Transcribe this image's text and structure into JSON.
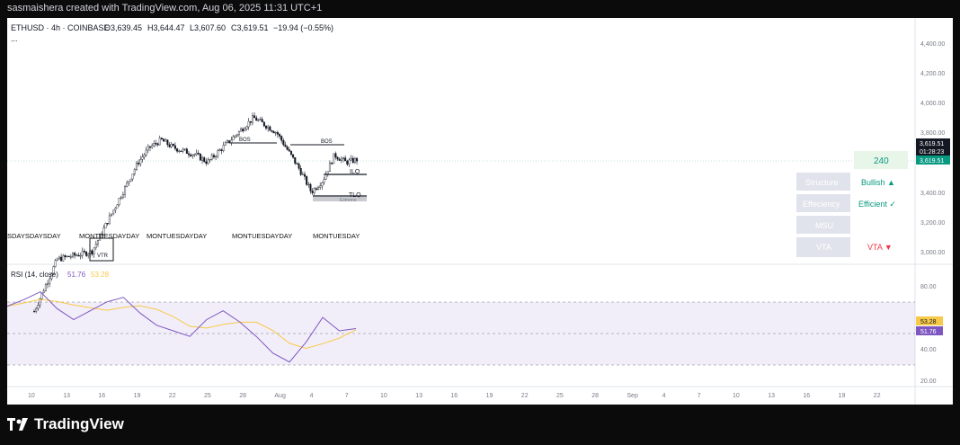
{
  "header": {
    "credit": "sasmaishera created with TradingView.com, Aug 06, 2025 11:31 UTC+1"
  },
  "footer": {
    "brand": "TradingView"
  },
  "symbol": {
    "name": "ETHUSD · 4h · COINBASE",
    "open": "O3,639.45",
    "high": "H3,644.47",
    "low": "L3,607.60",
    "close": "C3,619.51",
    "change": "−19.94 (−0.55%)",
    "more": "..."
  },
  "price_axis": {
    "ticks": [
      "4,400.00",
      "4,200.00",
      "4,000.00",
      "3,800.00",
      "3,400.00",
      "3,200.00",
      "3,000.00"
    ]
  },
  "price_badges": {
    "last": "3,619.51",
    "countdown": "01:28:23",
    "last2": "3,619.51"
  },
  "rsi": {
    "title": "RSI (14, close)",
    "rsi_value": "51.76",
    "ma_value": "53.28",
    "ticks": [
      "80.00",
      "40.00",
      "20.00"
    ],
    "badge_ma": "53.28",
    "badge_rsi": "51.76"
  },
  "time_axis": {
    "ticks": [
      "10",
      "13",
      "16",
      "19",
      "22",
      "25",
      "28",
      "Aug",
      "4",
      "7",
      "10",
      "13",
      "16",
      "19",
      "22",
      "25",
      "28",
      "Sep",
      "4",
      "7",
      "10",
      "13",
      "16",
      "19",
      "22"
    ]
  },
  "annotations": {
    "bos1": "BOS",
    "bos2": "BOS",
    "ilq": "ILQ",
    "tlq": "TLQ",
    "extreme": "Extreme",
    "vtr": "VTR",
    "days_1": "SDAYSDAYSDAY",
    "days_2": "MONTUESDAYDAY",
    "days_3": "MONTUESDAYDAY",
    "days_4": "MONTUESDAY"
  },
  "panel": {
    "value": "240",
    "rows": [
      {
        "label": "Structure",
        "value": "Bullish ▲"
      },
      {
        "label": "Effeciency",
        "value": "Efficient ✓"
      },
      {
        "label": "MSU",
        "value": ""
      },
      {
        "label": "VTA",
        "value": "VTA ▼"
      }
    ]
  },
  "colors": {
    "up": "#089981",
    "down": "#f23645",
    "rsi": "#7e57c2",
    "rsi_ma": "#f7c948",
    "panel_bg": "#e0e3eb",
    "bullish": "#089981",
    "vta": "#f23645",
    "candle": "#131722"
  },
  "chart_data": {
    "type": "candlestick",
    "symbol": "ETHUSD",
    "interval": "4h",
    "x_range": [
      "Jul 8, 2025",
      "Aug 6, 2025"
    ],
    "close_path_approx": [
      {
        "date": "Jul 9",
        "price": 2600
      },
      {
        "date": "Jul 11",
        "price": 2950
      },
      {
        "date": "Jul 14",
        "price": 3000
      },
      {
        "date": "Jul 16",
        "price": 3300
      },
      {
        "date": "Jul 17",
        "price": 3450
      },
      {
        "date": "Jul 18",
        "price": 3600
      },
      {
        "date": "Jul 19",
        "price": 3700
      },
      {
        "date": "Jul 20",
        "price": 3750
      },
      {
        "date": "Jul 21",
        "price": 3700
      },
      {
        "date": "Jul 23",
        "price": 3650
      },
      {
        "date": "Jul 24",
        "price": 3600
      },
      {
        "date": "Jul 26",
        "price": 3750
      },
      {
        "date": "Jul 28",
        "price": 3900
      },
      {
        "date": "Jul 30",
        "price": 3800
      },
      {
        "date": "Aug 1",
        "price": 3550
      },
      {
        "date": "Aug 2",
        "price": 3400
      },
      {
        "date": "Aug 3",
        "price": 3480
      },
      {
        "date": "Aug 4",
        "price": 3650
      },
      {
        "date": "Aug 5",
        "price": 3600
      },
      {
        "date": "Aug 6",
        "price": 3619.51
      }
    ],
    "rsi_path_approx": [
      72,
      78,
      85,
      70,
      60,
      68,
      76,
      80,
      66,
      55,
      50,
      45,
      60,
      68,
      58,
      45,
      30,
      22,
      40,
      62,
      50,
      52
    ]
  }
}
